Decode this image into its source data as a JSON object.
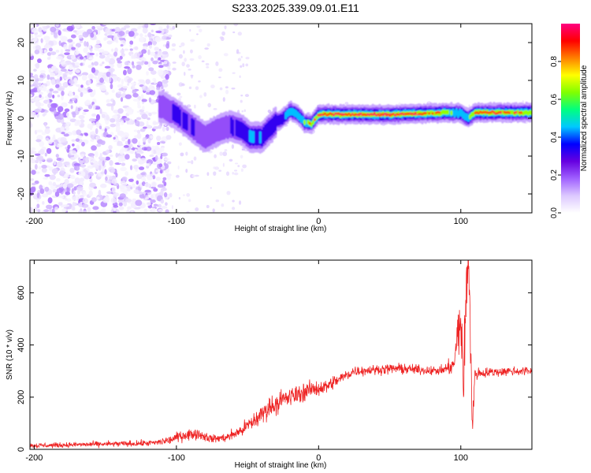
{
  "title": "S233.2025.339.09.01.E11",
  "chart_data": [
    {
      "type": "heatmap",
      "title": "S233.2025.339.09.01.E11",
      "xlabel": "Height of straight line (km)",
      "ylabel": "Frequency (Hz)",
      "xlim": [
        -203,
        150
      ],
      "ylim": [
        -25,
        25
      ],
      "xticks": [
        -200,
        -100,
        0,
        100
      ],
      "xtick_labels": [
        "-200",
        "-100",
        "0",
        "100"
      ],
      "yticks": [
        -20,
        -10,
        0,
        10,
        20
      ],
      "ytick_labels": [
        "-20",
        "-10",
        "0",
        "10",
        "20"
      ],
      "colorbar": {
        "label": "Normalized spectral amplitude",
        "range": [
          0,
          1
        ],
        "ticks": [
          0.0,
          0.2,
          0.4,
          0.6,
          0.8
        ],
        "tick_labels": [
          "0.0",
          "0.2",
          "0.4",
          "0.6",
          "0.8"
        ],
        "colormap": [
          "#ffffff",
          "#dcc8ff",
          "#a060ff",
          "#6600e0",
          "#0000ff",
          "#00c8ff",
          "#00ff80",
          "#80ff00",
          "#ffff00",
          "#ff8000",
          "#ff0000",
          "#ff0080"
        ]
      },
      "ridge": {
        "description": "frequency of peak spectral amplitude vs height",
        "x": [
          -110,
          -100,
          -90,
          -80,
          -70,
          -62,
          -55,
          -48,
          -40,
          -35,
          -30,
          -25,
          -20,
          -15,
          -10,
          -5,
          0,
          10,
          30,
          50,
          70,
          90,
          100,
          105,
          110,
          130,
          150
        ],
        "y": [
          3,
          1,
          -2,
          -5,
          -3,
          -2,
          -3,
          -5,
          -5,
          -3,
          -1,
          0,
          2,
          1,
          -1,
          -1.5,
          1,
          1,
          1,
          1,
          1.2,
          1.5,
          1.3,
          0,
          1.5,
          1.5,
          1.5
        ],
        "amplitude": [
          0.25,
          0.3,
          0.3,
          0.25,
          0.22,
          0.3,
          0.35,
          0.4,
          0.4,
          0.35,
          0.35,
          0.35,
          0.45,
          0.5,
          0.6,
          0.8,
          0.9,
          0.95,
          0.95,
          0.9,
          0.9,
          0.7,
          0.45,
          0.6,
          0.9,
          0.85,
          0.8
        ]
      }
    },
    {
      "type": "line",
      "xlabel": "Height of straight line (km)",
      "ylabel": "SNR (10 * v/v)",
      "xlim": [
        -203,
        150
      ],
      "ylim": [
        0,
        725
      ],
      "xticks": [
        -200,
        -100,
        0,
        100
      ],
      "xtick_labels": [
        "-200",
        "-100",
        "0",
        "100"
      ],
      "yticks": [
        0,
        200,
        400,
        600
      ],
      "ytick_labels": [
        "0",
        "200",
        "400",
        "600"
      ],
      "color": "#ee2222",
      "series": [
        {
          "name": "SNR",
          "x": [
            -203,
            -190,
            -170,
            -150,
            -130,
            -115,
            -105,
            -95,
            -85,
            -75,
            -65,
            -55,
            -45,
            -35,
            -25,
            -15,
            -5,
            5,
            15,
            25,
            40,
            55,
            70,
            85,
            95,
            98,
            100,
            102,
            104,
            106,
            107,
            108,
            110,
            120,
            135,
            150
          ],
          "y": [
            15,
            15,
            18,
            20,
            22,
            25,
            35,
            55,
            60,
            40,
            45,
            70,
            110,
            160,
            190,
            210,
            230,
            240,
            270,
            300,
            305,
            310,
            305,
            300,
            320,
            440,
            500,
            250,
            620,
            700,
            400,
            80,
            290,
            295,
            300,
            300
          ],
          "noise": [
            12,
            12,
            12,
            14,
            14,
            15,
            20,
            28,
            25,
            20,
            20,
            30,
            45,
            50,
            50,
            45,
            40,
            35,
            30,
            25,
            22,
            25,
            22,
            20,
            40,
            130,
            150,
            160,
            200,
            240,
            220,
            120,
            30,
            22,
            22,
            22
          ]
        }
      ]
    }
  ]
}
